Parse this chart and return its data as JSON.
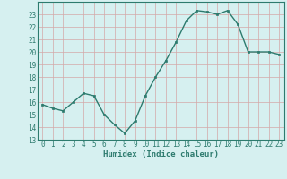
{
  "x": [
    0,
    1,
    2,
    3,
    4,
    5,
    6,
    7,
    8,
    9,
    10,
    11,
    12,
    13,
    14,
    15,
    16,
    17,
    18,
    19,
    20,
    21,
    22,
    23
  ],
  "y": [
    15.8,
    15.5,
    15.3,
    16.0,
    16.7,
    16.5,
    15.0,
    14.2,
    13.5,
    14.5,
    16.5,
    18.0,
    19.3,
    20.8,
    22.5,
    23.3,
    23.2,
    23.0,
    23.3,
    22.2,
    20.0,
    20.0,
    20.0,
    19.8
  ],
  "xlabel": "Humidex (Indice chaleur)",
  "ylim": [
    13,
    24
  ],
  "xlim": [
    -0.5,
    23.5
  ],
  "yticks": [
    13,
    14,
    15,
    16,
    17,
    18,
    19,
    20,
    21,
    22,
    23
  ],
  "xticks": [
    0,
    1,
    2,
    3,
    4,
    5,
    6,
    7,
    8,
    9,
    10,
    11,
    12,
    13,
    14,
    15,
    16,
    17,
    18,
    19,
    20,
    21,
    22,
    23
  ],
  "line_color": "#2d7b6e",
  "marker_color": "#2d7b6e",
  "bg_color": "#d6f0f0",
  "grid_major_color": "#c8d8d8",
  "grid_minor_color": "#e0e8e8",
  "xlabel_color": "#2d7b6e",
  "tick_color": "#2d7b6e",
  "spine_color": "#2d7b6e"
}
